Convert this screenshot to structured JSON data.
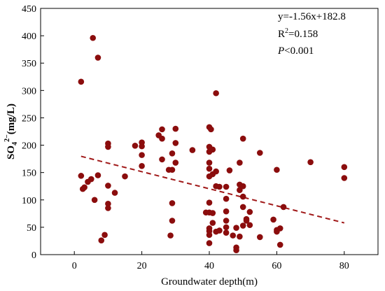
{
  "chart_data": {
    "type": "scatter",
    "title": "",
    "xlabel": "Groundwater depth(m)",
    "ylabel": {
      "base": "SO",
      "sub": "4",
      "sup": "2−",
      "unit": "(mg/L)"
    },
    "xlim": [
      -10,
      90
    ],
    "ylim": [
      0,
      450
    ],
    "x_ticks": [
      0,
      20,
      40,
      60,
      80
    ],
    "y_ticks": [
      0,
      50,
      100,
      150,
      200,
      250,
      300,
      350,
      400,
      450
    ],
    "grid": false,
    "legend": "none",
    "marker_color": "#8b0d0d",
    "line_color": "#a01818",
    "annotations": {
      "equation": "y=-1.56x+182.8",
      "r2_base": "R",
      "r2_sup": "2",
      "r2_value": "=0.158",
      "p_label": "P",
      "p_value": "<0.001"
    },
    "trendline": {
      "slope": -1.56,
      "intercept": 182.8,
      "x_range": [
        2,
        80
      ],
      "style": "dashed"
    },
    "points": [
      {
        "x": 2,
        "y": 316
      },
      {
        "x": 5.5,
        "y": 396
      },
      {
        "x": 7,
        "y": 360
      },
      {
        "x": 2,
        "y": 144
      },
      {
        "x": 2.5,
        "y": 120
      },
      {
        "x": 3,
        "y": 123
      },
      {
        "x": 4,
        "y": 133
      },
      {
        "x": 5,
        "y": 138
      },
      {
        "x": 6,
        "y": 100
      },
      {
        "x": 7,
        "y": 145
      },
      {
        "x": 8,
        "y": 26
      },
      {
        "x": 9,
        "y": 36
      },
      {
        "x": 10,
        "y": 203
      },
      {
        "x": 10,
        "y": 197
      },
      {
        "x": 10,
        "y": 126
      },
      {
        "x": 10,
        "y": 93
      },
      {
        "x": 10,
        "y": 85
      },
      {
        "x": 12,
        "y": 113
      },
      {
        "x": 15,
        "y": 143
      },
      {
        "x": 18,
        "y": 199
      },
      {
        "x": 20,
        "y": 205
      },
      {
        "x": 20,
        "y": 198
      },
      {
        "x": 20,
        "y": 182
      },
      {
        "x": 20,
        "y": 162
      },
      {
        "x": 25,
        "y": 218
      },
      {
        "x": 26,
        "y": 229
      },
      {
        "x": 26,
        "y": 212
      },
      {
        "x": 26,
        "y": 174
      },
      {
        "x": 28,
        "y": 155
      },
      {
        "x": 29,
        "y": 185
      },
      {
        "x": 29,
        "y": 155
      },
      {
        "x": 29,
        "y": 94
      },
      {
        "x": 29,
        "y": 62
      },
      {
        "x": 28.5,
        "y": 35
      },
      {
        "x": 30,
        "y": 230
      },
      {
        "x": 30,
        "y": 204
      },
      {
        "x": 30,
        "y": 168
      },
      {
        "x": 35,
        "y": 191
      },
      {
        "x": 39,
        "y": 77
      },
      {
        "x": 40,
        "y": 233
      },
      {
        "x": 40.5,
        "y": 229
      },
      {
        "x": 40,
        "y": 197
      },
      {
        "x": 40,
        "y": 188
      },
      {
        "x": 40,
        "y": 168
      },
      {
        "x": 40,
        "y": 157
      },
      {
        "x": 40,
        "y": 143
      },
      {
        "x": 40,
        "y": 95
      },
      {
        "x": 40,
        "y": 77
      },
      {
        "x": 40,
        "y": 48
      },
      {
        "x": 40,
        "y": 43
      },
      {
        "x": 40,
        "y": 36
      },
      {
        "x": 40,
        "y": 21
      },
      {
        "x": 41,
        "y": 192
      },
      {
        "x": 41,
        "y": 147
      },
      {
        "x": 41,
        "y": 76
      },
      {
        "x": 41,
        "y": 58
      },
      {
        "x": 42,
        "y": 295
      },
      {
        "x": 42,
        "y": 152
      },
      {
        "x": 42,
        "y": 125
      },
      {
        "x": 42,
        "y": 42
      },
      {
        "x": 43,
        "y": 124
      },
      {
        "x": 43,
        "y": 44
      },
      {
        "x": 45,
        "y": 124
      },
      {
        "x": 45,
        "y": 102
      },
      {
        "x": 45,
        "y": 79
      },
      {
        "x": 45,
        "y": 62
      },
      {
        "x": 45,
        "y": 50
      },
      {
        "x": 45,
        "y": 40
      },
      {
        "x": 46,
        "y": 154
      },
      {
        "x": 47,
        "y": 35
      },
      {
        "x": 48,
        "y": 13
      },
      {
        "x": 48,
        "y": 8
      },
      {
        "x": 48,
        "y": 49
      },
      {
        "x": 49,
        "y": 128
      },
      {
        "x": 49,
        "y": 118
      },
      {
        "x": 49,
        "y": 33
      },
      {
        "x": 49,
        "y": 168
      },
      {
        "x": 50,
        "y": 212
      },
      {
        "x": 50,
        "y": 125
      },
      {
        "x": 50,
        "y": 106
      },
      {
        "x": 50,
        "y": 87
      },
      {
        "x": 50,
        "y": 53
      },
      {
        "x": 51,
        "y": 65
      },
      {
        "x": 51,
        "y": 62
      },
      {
        "x": 52,
        "y": 78
      },
      {
        "x": 52,
        "y": 54
      },
      {
        "x": 55,
        "y": 186
      },
      {
        "x": 55,
        "y": 32
      },
      {
        "x": 59,
        "y": 64
      },
      {
        "x": 60,
        "y": 155
      },
      {
        "x": 60,
        "y": 45
      },
      {
        "x": 60,
        "y": 42
      },
      {
        "x": 61,
        "y": 48
      },
      {
        "x": 61,
        "y": 18
      },
      {
        "x": 62,
        "y": 87
      },
      {
        "x": 70,
        "y": 169
      },
      {
        "x": 80,
        "y": 160
      },
      {
        "x": 80,
        "y": 140
      }
    ]
  }
}
